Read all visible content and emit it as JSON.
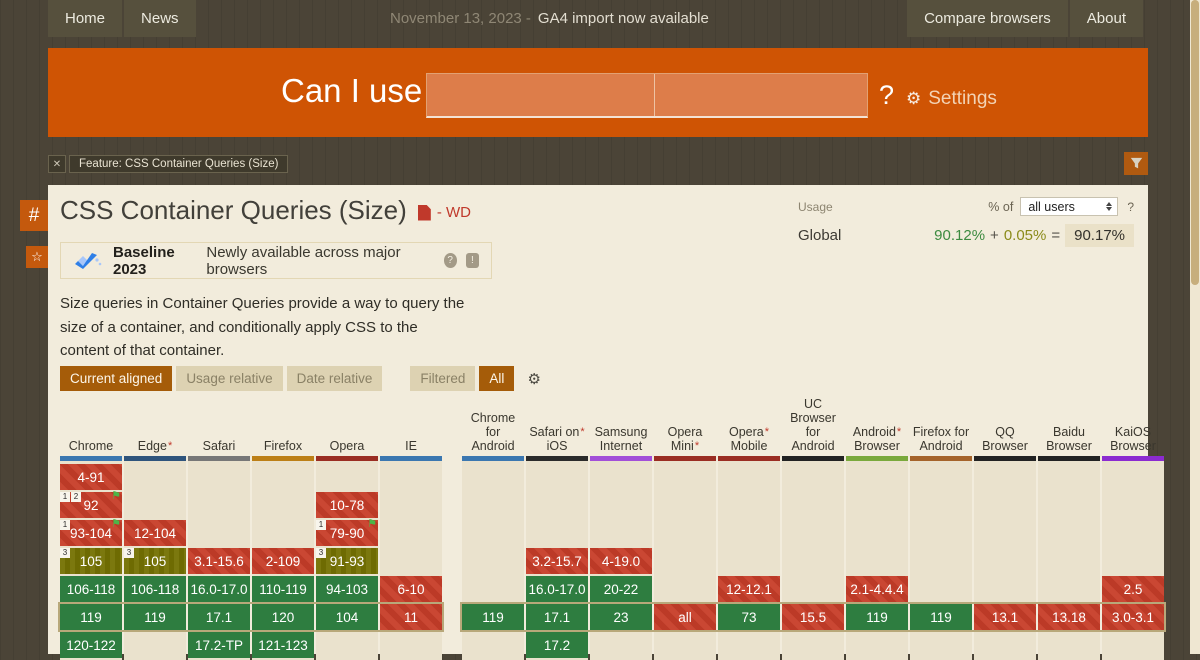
{
  "nav": {
    "home": "Home",
    "news": "News",
    "announcement_date": "November 13, 2023 -",
    "announcement_text": "GA4 import now available",
    "compare": "Compare browsers",
    "about": "About"
  },
  "header": {
    "brand": "Can I use",
    "search_value": "",
    "search_secondary_value": "",
    "help": "?",
    "settings": "Settings"
  },
  "icons": {
    "gear": "⚙",
    "close": "✕",
    "hash": "#",
    "star": "☆",
    "flag": "⚑",
    "question": "?",
    "exclaim": "!"
  },
  "feature_tag": {
    "label": "Feature: CSS Container Queries (Size)"
  },
  "page": {
    "title": "CSS Container Queries (Size)",
    "spec_status": "- WD",
    "baseline": {
      "badge": "Baseline 2023",
      "text": "Newly available across major browsers"
    },
    "usage": {
      "label": "Usage",
      "percent_of": "% of",
      "selected_option": "all users",
      "help": "?",
      "region": "Global",
      "full_support": "90.12%",
      "plus": "+",
      "partial_support": "0.05%",
      "equals": "=",
      "total": "90.17%"
    },
    "description": "Size queries in Container Queries provide a way to query the size of a container, and conditionally apply CSS to the content of that container.",
    "controls": [
      {
        "label": "Current aligned",
        "active": true
      },
      {
        "label": "Usage relative",
        "active": false
      },
      {
        "label": "Date relative",
        "active": false
      },
      {
        "label": "Filtered",
        "active": false,
        "gap": true
      },
      {
        "label": "All",
        "active": true
      }
    ]
  },
  "colors": {
    "accent_orange": "#cf5404",
    "active_button": "#a55c09",
    "panel_bg": "#f2ecdc",
    "support_yes": "#2e7d40",
    "support_no_base": "#ca4733",
    "support_no_stripe": "#bc3a27",
    "support_partial_base": "#7b780e",
    "support_partial_stripe": "#6e6b02",
    "current_row_outline": "#b8a87a"
  },
  "table": {
    "rows": 7,
    "current_row": 5,
    "sections": [
      {
        "id": "desktop",
        "browsers": [
          {
            "name": "Chrome",
            "lines": [
              "Chrome"
            ],
            "asterisk": false,
            "bar_color": "#3b77b0",
            "cells": [
              {
                "version": "4-91",
                "support": "n"
              },
              {
                "version": "92",
                "support": "n",
                "notes": [
                  "1",
                  "2"
                ],
                "flag": true
              },
              {
                "version": "93-104",
                "support": "n",
                "notes": [
                  "1"
                ],
                "flag": true
              },
              {
                "version": "105",
                "support": "a",
                "notes": [
                  "3"
                ]
              },
              {
                "version": "106-118",
                "support": "y"
              },
              {
                "version": "119",
                "support": "y"
              },
              {
                "version": "120-122",
                "support": "y"
              }
            ]
          },
          {
            "name": "Edge",
            "lines": [
              "Edge"
            ],
            "asterisk": true,
            "bar_color": "#2f547c",
            "cells": [
              null,
              null,
              {
                "version": "12-104",
                "support": "n"
              },
              {
                "version": "105",
                "support": "a",
                "notes": [
                  "3"
                ]
              },
              {
                "version": "106-118",
                "support": "y"
              },
              {
                "version": "119",
                "support": "y"
              },
              null
            ]
          },
          {
            "name": "Safari",
            "lines": [
              "Safari"
            ],
            "asterisk": false,
            "bar_color": "#777777",
            "cells": [
              null,
              null,
              null,
              {
                "version": "3.1-15.6",
                "support": "n"
              },
              {
                "version": "16.0-17.0",
                "support": "y"
              },
              {
                "version": "17.1",
                "support": "y"
              },
              {
                "version": "17.2-TP",
                "support": "y"
              }
            ]
          },
          {
            "name": "Firefox",
            "lines": [
              "Firefox"
            ],
            "asterisk": false,
            "bar_color": "#bc7f16",
            "cells": [
              null,
              null,
              null,
              {
                "version": "2-109",
                "support": "n"
              },
              {
                "version": "110-119",
                "support": "y"
              },
              {
                "version": "120",
                "support": "y"
              },
              {
                "version": "121-123",
                "support": "y"
              }
            ]
          },
          {
            "name": "Opera",
            "lines": [
              "Opera"
            ],
            "asterisk": false,
            "bar_color": "#9a2d22",
            "cells": [
              null,
              {
                "version": "10-78",
                "support": "n"
              },
              {
                "version": "79-90",
                "support": "n",
                "notes": [
                  "1"
                ],
                "flag": true
              },
              {
                "version": "91-93",
                "support": "a",
                "notes": [
                  "3"
                ]
              },
              {
                "version": "94-103",
                "support": "y"
              },
              {
                "version": "104",
                "support": "y"
              },
              null
            ]
          },
          {
            "name": "IE",
            "lines": [
              "IE"
            ],
            "asterisk": false,
            "bar_color": "#3b77b0",
            "cells": [
              null,
              null,
              null,
              null,
              {
                "version": "6-10",
                "support": "n"
              },
              {
                "version": "11",
                "support": "n"
              },
              null
            ]
          }
        ]
      },
      {
        "id": "mobile",
        "browsers": [
          {
            "name": "Chrome for Android",
            "lines": [
              "Chrome",
              "for",
              "Android"
            ],
            "asterisk": false,
            "bar_color": "#3b77b0",
            "cells": [
              null,
              null,
              null,
              null,
              null,
              {
                "version": "119",
                "support": "y"
              },
              null
            ]
          },
          {
            "name": "Safari on iOS",
            "lines": [
              "Safari on",
              "iOS"
            ],
            "asterisk": true,
            "bar_color": "#2b2b2b",
            "cells": [
              null,
              null,
              null,
              {
                "version": "3.2-15.7",
                "support": "n"
              },
              {
                "version": "16.0-17.0",
                "support": "y"
              },
              {
                "version": "17.1",
                "support": "y"
              },
              {
                "version": "17.2",
                "support": "y"
              }
            ]
          },
          {
            "name": "Samsung Internet",
            "lines": [
              "Samsung",
              "Internet"
            ],
            "asterisk": false,
            "bar_color": "#a24fd8",
            "cells": [
              null,
              null,
              null,
              {
                "version": "4-19.0",
                "support": "n"
              },
              {
                "version": "20-22",
                "support": "y"
              },
              {
                "version": "23",
                "support": "y"
              },
              null
            ]
          },
          {
            "name": "Opera Mini",
            "lines": [
              "Opera Mini"
            ],
            "asterisk": true,
            "bar_color": "#9a2d22",
            "cells": [
              null,
              null,
              null,
              null,
              null,
              {
                "version": "all",
                "support": "n"
              },
              null
            ]
          },
          {
            "name": "Opera Mobile",
            "lines": [
              "Opera",
              "Mobile"
            ],
            "asterisk": true,
            "bar_color": "#9a2d22",
            "cells": [
              null,
              null,
              null,
              null,
              {
                "version": "12-12.1",
                "support": "n"
              },
              {
                "version": "73",
                "support": "y"
              },
              null
            ]
          },
          {
            "name": "UC Browser for Android",
            "lines": [
              "UC",
              "Browser",
              "for",
              "Android"
            ],
            "asterisk": false,
            "bar_color": "#222222",
            "cells": [
              null,
              null,
              null,
              null,
              null,
              {
                "version": "15.5",
                "support": "n"
              },
              null
            ]
          },
          {
            "name": "Android Browser",
            "lines": [
              "Android",
              "Browser"
            ],
            "asterisk": true,
            "bar_color": "#7aa93c",
            "cells": [
              null,
              null,
              null,
              null,
              {
                "version": "2.1-4.4.4",
                "support": "n"
              },
              {
                "version": "119",
                "support": "y"
              },
              null
            ]
          },
          {
            "name": "Firefox for Android",
            "lines": [
              "Firefox for",
              "Android"
            ],
            "asterisk": false,
            "bar_color": "#a5632a",
            "cells": [
              null,
              null,
              null,
              null,
              null,
              {
                "version": "119",
                "support": "y"
              },
              null
            ]
          },
          {
            "name": "QQ Browser",
            "lines": [
              "QQ",
              "Browser"
            ],
            "asterisk": false,
            "bar_color": "#222222",
            "cells": [
              null,
              null,
              null,
              null,
              null,
              {
                "version": "13.1",
                "support": "n"
              },
              null
            ]
          },
          {
            "name": "Baidu Browser",
            "lines": [
              "Baidu",
              "Browser"
            ],
            "asterisk": false,
            "bar_color": "#222222",
            "cells": [
              null,
              null,
              null,
              null,
              null,
              {
                "version": "13.18",
                "support": "n"
              },
              null
            ]
          },
          {
            "name": "KaiOS Browser",
            "lines": [
              "KaiOS",
              "Browser"
            ],
            "asterisk": false,
            "bar_color": "#8b2bd0",
            "cells": [
              null,
              null,
              null,
              null,
              {
                "version": "2.5",
                "support": "n"
              },
              {
                "version": "3.0-3.1",
                "support": "n"
              },
              null
            ]
          }
        ]
      }
    ]
  }
}
